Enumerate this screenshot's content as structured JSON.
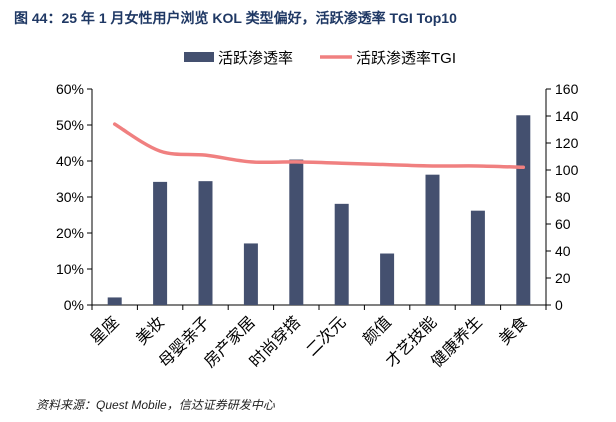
{
  "figure": {
    "title": "图 44：25 年 1 月女性用户浏览 KOL 类型偏好，活跃渗透率 TGI Top10",
    "source": "资料来源：Quest Mobile，信达证券研发中心"
  },
  "chart_data": {
    "type": "bar+line",
    "categories": [
      "星座",
      "美妆",
      "母婴亲子",
      "房产家居",
      "时尚穿搭",
      "二次元",
      "颜值",
      "才艺技能",
      "健康养生",
      "美食"
    ],
    "series": [
      {
        "name": "活跃渗透率",
        "kind": "bar",
        "axis": "left",
        "unit": "%",
        "color": "#44506f",
        "values": [
          2.1,
          34.2,
          34.4,
          17.1,
          40.4,
          28.1,
          14.3,
          36.2,
          26.2,
          52.7
        ]
      },
      {
        "name": "活跃渗透率TGI",
        "kind": "line",
        "axis": "right",
        "color": "#f08080",
        "values": [
          134,
          114,
          111,
          106,
          106,
          105,
          104,
          103,
          103,
          102
        ]
      }
    ],
    "y_left": {
      "min": 0,
      "max": 60,
      "ticks": [
        "0%",
        "10%",
        "20%",
        "30%",
        "40%",
        "50%",
        "60%"
      ]
    },
    "y_right": {
      "min": 0,
      "max": 160,
      "ticks": [
        "0",
        "20",
        "40",
        "60",
        "80",
        "100",
        "120",
        "140",
        "160"
      ]
    },
    "legend": {
      "position": "top"
    }
  }
}
